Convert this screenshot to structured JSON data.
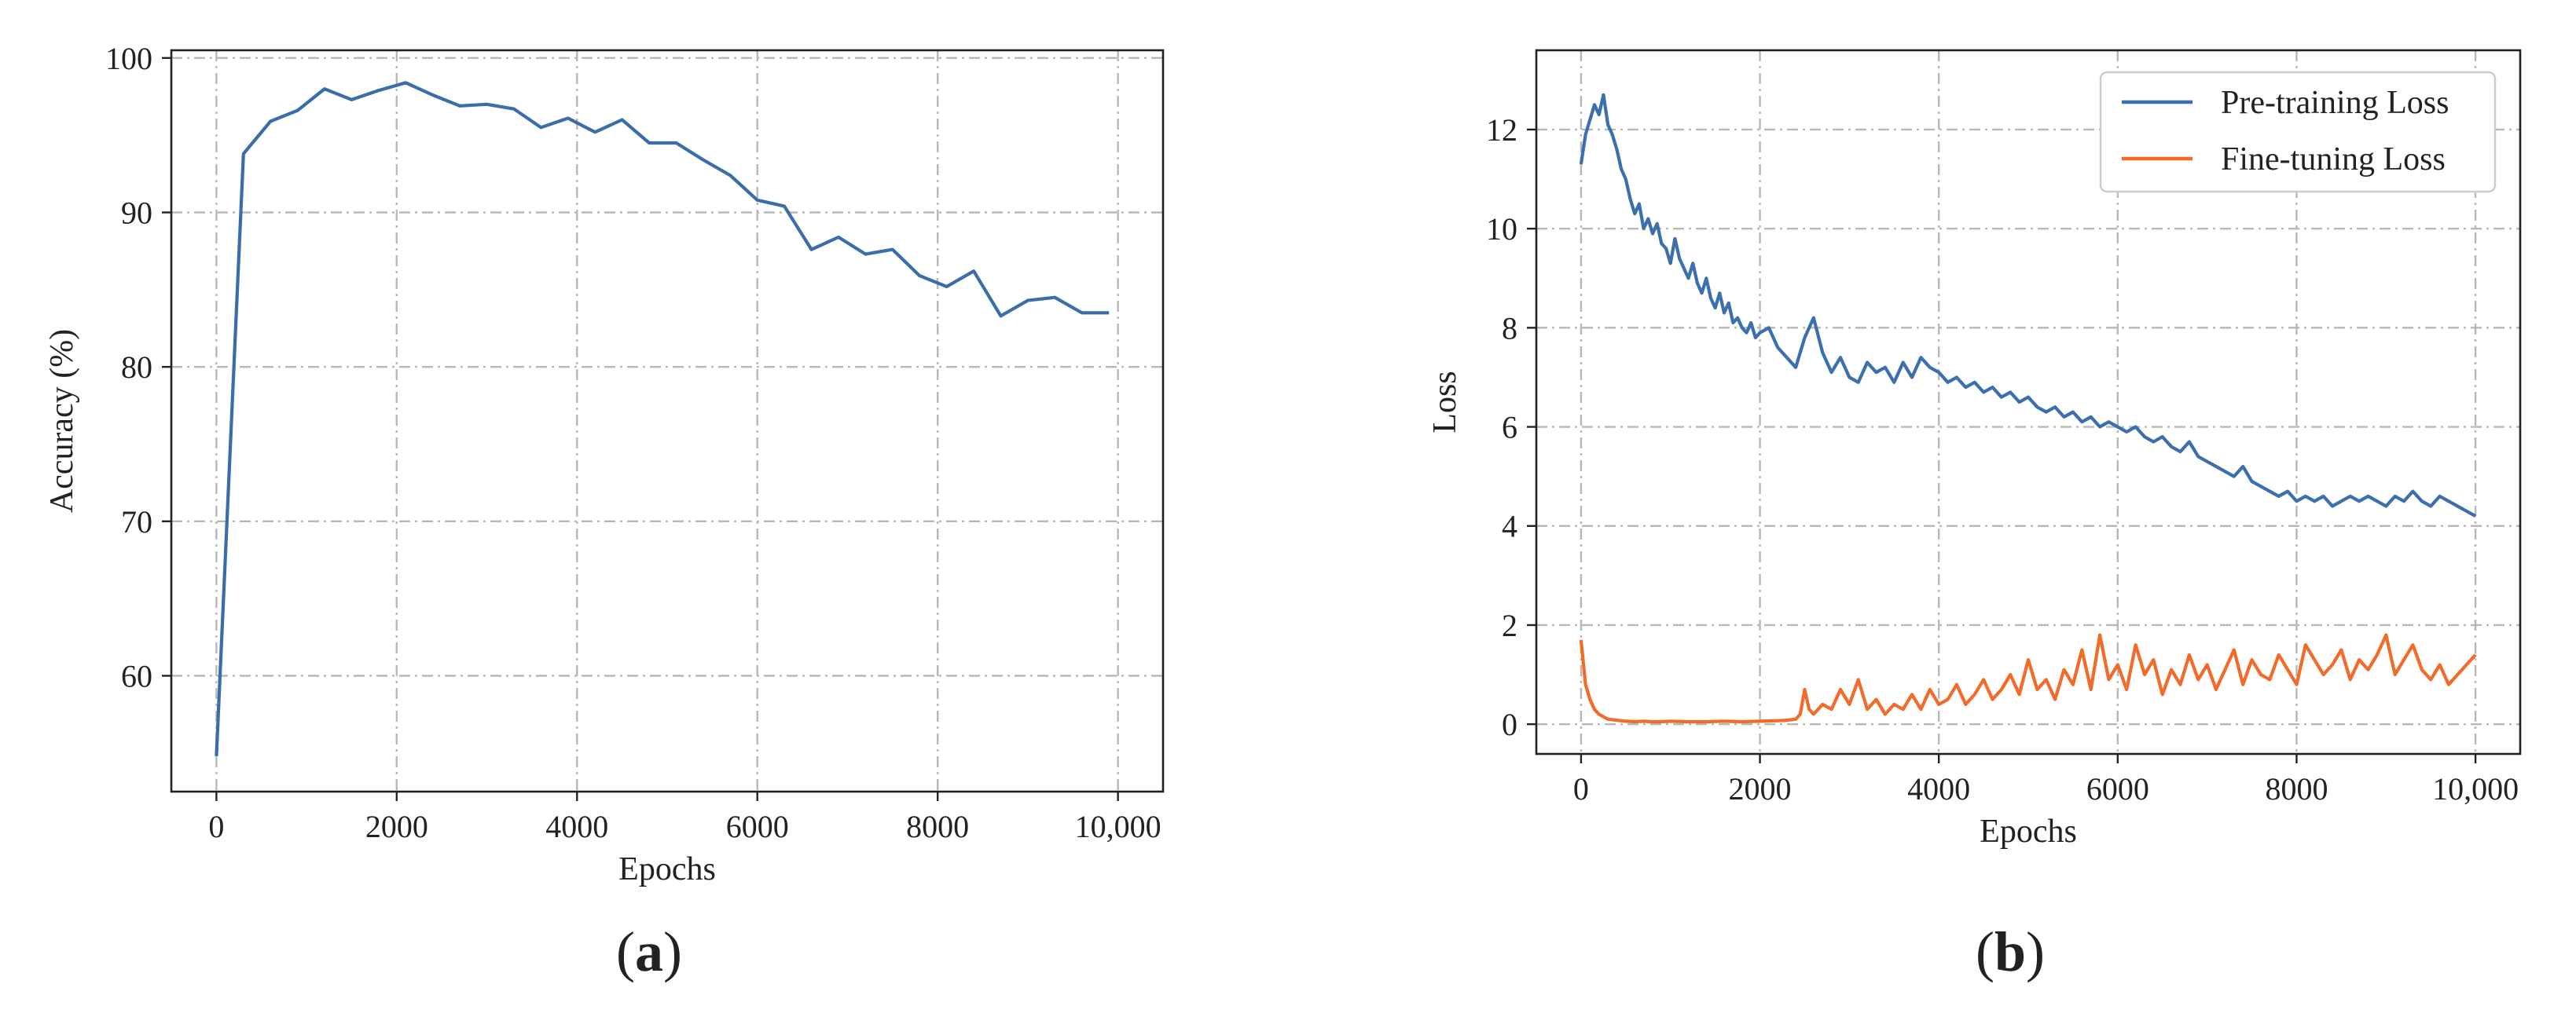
{
  "figure": {
    "panels": [
      {
        "label_open": "(",
        "label_letter": "a",
        "label_close": ")"
      },
      {
        "label_open": "(",
        "label_letter": "b",
        "label_close": ")"
      }
    ]
  },
  "colors": {
    "accuracy_line": "#3a6ea9",
    "pretraining_line": "#3b6fad",
    "finetuning_line": "#f26b2a",
    "grid": "#b8b8b8",
    "axes": "#222222"
  },
  "chart_data": [
    {
      "type": "line",
      "xlabel": "Epochs",
      "ylabel": "Accuracy (%)",
      "xlim": [
        -500,
        10500
      ],
      "ylim": [
        52.5,
        100.5
      ],
      "xticks": [
        0,
        2000,
        4000,
        6000,
        8000,
        10000
      ],
      "xtick_labels": [
        "0",
        "2000",
        "4000",
        "6000",
        "8000",
        "10,000"
      ],
      "yticks": [
        60,
        70,
        80,
        90,
        100
      ],
      "ytick_labels": [
        "60",
        "70",
        "80",
        "90",
        "100"
      ],
      "grid": true,
      "series": [
        {
          "x": [
            0,
            300,
            600,
            900,
            1200,
            1500,
            1800,
            2100,
            2400,
            2700,
            3000,
            3300,
            3600,
            3900,
            4200,
            4500,
            4800,
            5100,
            5400,
            5700,
            6000,
            6300,
            6600,
            6900,
            7200,
            7500,
            7800,
            8100,
            8400,
            8700,
            9000,
            9300,
            9600,
            9900
          ],
          "y": [
            54.8,
            93.8,
            95.9,
            96.6,
            98.0,
            97.3,
            97.9,
            98.4,
            97.6,
            96.9,
            97.0,
            96.7,
            95.5,
            96.1,
            95.2,
            96.0,
            94.5,
            94.5,
            93.4,
            92.4,
            90.8,
            90.4,
            87.6,
            88.4,
            87.3,
            87.6,
            85.9,
            85.2,
            86.2,
            83.3,
            84.3,
            84.5,
            83.5,
            83.5
          ]
        }
      ]
    },
    {
      "type": "line",
      "xlabel": "Epochs",
      "ylabel": "Loss",
      "xlim": [
        -500,
        10500
      ],
      "ylim": [
        -0.6,
        13.6
      ],
      "xticks": [
        0,
        2000,
        4000,
        6000,
        8000,
        10000
      ],
      "xtick_labels": [
        "0",
        "2000",
        "4000",
        "6000",
        "8000",
        "10,000"
      ],
      "yticks": [
        0,
        2,
        4,
        6,
        8,
        10,
        12
      ],
      "ytick_labels": [
        "0",
        "2",
        "4",
        "6",
        "8",
        "10",
        "12"
      ],
      "grid": true,
      "legend_position": "top-right",
      "series": [
        {
          "name": "Pre-training Loss",
          "x": [
            0,
            50,
            100,
            150,
            200,
            250,
            300,
            350,
            400,
            450,
            500,
            550,
            600,
            650,
            700,
            750,
            800,
            850,
            900,
            950,
            1000,
            1050,
            1100,
            1150,
            1200,
            1250,
            1300,
            1350,
            1400,
            1450,
            1500,
            1550,
            1600,
            1650,
            1700,
            1750,
            1800,
            1850,
            1900,
            1950,
            2000,
            2100,
            2200,
            2300,
            2400,
            2500,
            2600,
            2700,
            2800,
            2900,
            3000,
            3100,
            3200,
            3300,
            3400,
            3500,
            3600,
            3700,
            3800,
            3900,
            4000,
            4100,
            4200,
            4300,
            4400,
            4500,
            4600,
            4700,
            4800,
            4900,
            5000,
            5100,
            5200,
            5300,
            5400,
            5500,
            5600,
            5700,
            5800,
            5900,
            6000,
            6100,
            6200,
            6300,
            6400,
            6500,
            6600,
            6700,
            6800,
            6900,
            7000,
            7100,
            7200,
            7300,
            7400,
            7500,
            7600,
            7700,
            7800,
            7900,
            8000,
            8100,
            8200,
            8300,
            8400,
            8500,
            8600,
            8700,
            8800,
            8900,
            9000,
            9100,
            9200,
            9300,
            9400,
            9500,
            9600,
            9700,
            9800,
            9900,
            10000
          ],
          "y": [
            11.3,
            11.9,
            12.2,
            12.5,
            12.3,
            12.7,
            12.1,
            11.9,
            11.6,
            11.2,
            11.0,
            10.6,
            10.3,
            10.5,
            10.0,
            10.2,
            9.9,
            10.1,
            9.7,
            9.6,
            9.3,
            9.8,
            9.4,
            9.2,
            9.0,
            9.3,
            8.9,
            8.7,
            9.0,
            8.6,
            8.4,
            8.7,
            8.3,
            8.5,
            8.1,
            8.2,
            8.0,
            7.9,
            8.1,
            7.8,
            7.9,
            8.0,
            7.6,
            7.4,
            7.2,
            7.8,
            8.2,
            7.5,
            7.1,
            7.4,
            7.0,
            6.9,
            7.3,
            7.1,
            7.2,
            6.9,
            7.3,
            7.0,
            7.4,
            7.2,
            7.1,
            6.9,
            7.0,
            6.8,
            6.9,
            6.7,
            6.8,
            6.6,
            6.7,
            6.5,
            6.6,
            6.4,
            6.3,
            6.4,
            6.2,
            6.3,
            6.1,
            6.2,
            6.0,
            6.1,
            6.0,
            5.9,
            6.0,
            5.8,
            5.7,
            5.8,
            5.6,
            5.5,
            5.7,
            5.4,
            5.3,
            5.2,
            5.1,
            5.0,
            5.2,
            4.9,
            4.8,
            4.7,
            4.6,
            4.7,
            4.5,
            4.6,
            4.5,
            4.6,
            4.4,
            4.5,
            4.6,
            4.5,
            4.6,
            4.5,
            4.4,
            4.6,
            4.5,
            4.7,
            4.5,
            4.4,
            4.6,
            4.5,
            4.4,
            4.3,
            4.2
          ]
        },
        {
          "name": "Fine-tuning Loss",
          "x": [
            0,
            50,
            100,
            150,
            200,
            250,
            300,
            400,
            500,
            600,
            700,
            800,
            900,
            1000,
            1200,
            1400,
            1600,
            1800,
            2000,
            2200,
            2300,
            2400,
            2450,
            2500,
            2550,
            2600,
            2700,
            2800,
            2900,
            3000,
            3100,
            3200,
            3300,
            3400,
            3500,
            3600,
            3700,
            3800,
            3900,
            4000,
            4100,
            4200,
            4300,
            4400,
            4500,
            4600,
            4700,
            4800,
            4900,
            5000,
            5100,
            5200,
            5300,
            5400,
            5500,
            5600,
            5700,
            5800,
            5900,
            6000,
            6100,
            6200,
            6300,
            6400,
            6500,
            6600,
            6700,
            6800,
            6900,
            7000,
            7100,
            7200,
            7300,
            7400,
            7500,
            7600,
            7700,
            7800,
            7900,
            8000,
            8100,
            8200,
            8300,
            8400,
            8500,
            8600,
            8700,
            8800,
            8900,
            9000,
            9100,
            9200,
            9300,
            9400,
            9500,
            9600,
            9700,
            9800,
            9900,
            10000
          ],
          "y": [
            1.7,
            0.8,
            0.5,
            0.3,
            0.2,
            0.15,
            0.1,
            0.08,
            0.06,
            0.05,
            0.06,
            0.05,
            0.05,
            0.06,
            0.05,
            0.05,
            0.06,
            0.05,
            0.06,
            0.07,
            0.08,
            0.1,
            0.2,
            0.7,
            0.3,
            0.2,
            0.4,
            0.3,
            0.7,
            0.4,
            0.9,
            0.3,
            0.5,
            0.2,
            0.4,
            0.3,
            0.6,
            0.3,
            0.7,
            0.4,
            0.5,
            0.8,
            0.4,
            0.6,
            0.9,
            0.5,
            0.7,
            1.0,
            0.6,
            1.3,
            0.7,
            0.9,
            0.5,
            1.1,
            0.8,
            1.5,
            0.7,
            1.8,
            0.9,
            1.2,
            0.7,
            1.6,
            1.0,
            1.3,
            0.6,
            1.1,
            0.8,
            1.4,
            0.9,
            1.2,
            0.7,
            1.1,
            1.5,
            0.8,
            1.3,
            1.0,
            0.9,
            1.4,
            1.1,
            0.8,
            1.6,
            1.3,
            1.0,
            1.2,
            1.5,
            0.9,
            1.3,
            1.1,
            1.4,
            1.8,
            1.0,
            1.3,
            1.6,
            1.1,
            0.9,
            1.2,
            0.8,
            1.0,
            1.2,
            1.4
          ]
        }
      ]
    }
  ]
}
